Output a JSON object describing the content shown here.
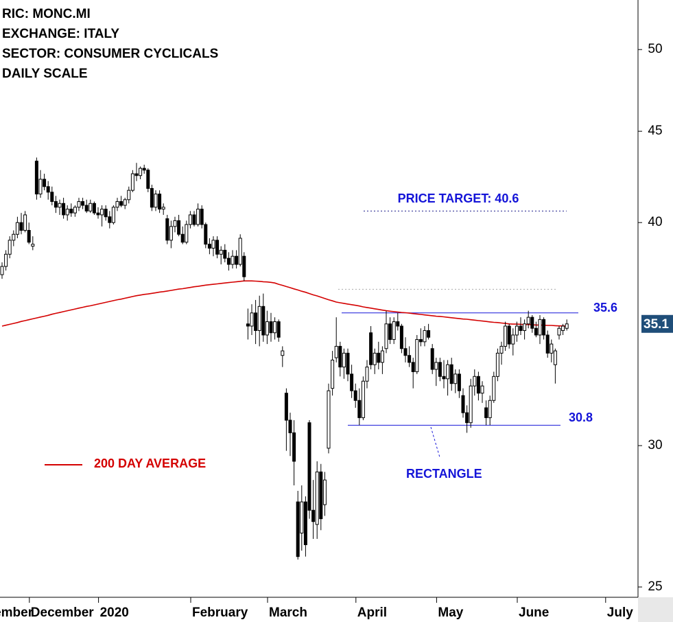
{
  "chart_data": {
    "type": "candlestick",
    "title_lines": [
      "RIC: MONC.MI",
      "EXCHANGE: ITALY",
      "SECTOR: CONSUMER CYCLICALS",
      "DAILY SCALE"
    ],
    "yscale": "log",
    "ylim": [
      24.67,
      53.3
    ],
    "yticks": [
      25,
      30,
      40,
      45,
      50
    ],
    "xticks": [
      {
        "value": -8,
        "label": "November"
      },
      {
        "value": 8,
        "label": "December"
      },
      {
        "value": 26,
        "label": "2020"
      },
      {
        "value": 50,
        "label": "February"
      },
      {
        "value": 70,
        "label": "March"
      },
      {
        "value": 93,
        "label": "April"
      },
      {
        "value": 114,
        "label": "May"
      },
      {
        "value": 135,
        "label": "June"
      },
      {
        "value": 158,
        "label": "July"
      }
    ],
    "ohlc": [
      [
        37.4,
        38.0,
        37.2,
        37.8
      ],
      [
        37.8,
        38.6,
        37.6,
        38.4
      ],
      [
        38.4,
        39.3,
        38.2,
        39.1
      ],
      [
        39.1,
        39.6,
        38.8,
        39.4
      ],
      [
        39.4,
        40.3,
        39.2,
        40.0
      ],
      [
        40.0,
        40.5,
        39.4,
        39.6
      ],
      [
        39.6,
        40.6,
        39.5,
        40.4
      ],
      [
        39.6,
        40.0,
        38.9,
        39.0
      ],
      [
        38.8,
        39.3,
        38.6,
        38.9
      ],
      [
        43.3,
        43.5,
        41.2,
        41.5
      ],
      [
        41.5,
        42.8,
        41.3,
        42.3
      ],
      [
        42.3,
        42.6,
        41.7,
        41.9
      ],
      [
        41.9,
        42.2,
        41.2,
        41.6
      ],
      [
        41.6,
        41.9,
        40.9,
        41.1
      ],
      [
        41.1,
        41.4,
        40.5,
        40.8
      ],
      [
        40.8,
        41.2,
        40.4,
        41.0
      ],
      [
        41.0,
        41.3,
        40.2,
        40.4
      ],
      [
        40.4,
        40.9,
        40.1,
        40.7
      ],
      [
        40.7,
        41.0,
        40.3,
        40.5
      ],
      [
        40.5,
        40.9,
        40.3,
        40.8
      ],
      [
        40.8,
        41.3,
        40.6,
        41.1
      ],
      [
        41.1,
        41.3,
        40.7,
        40.9
      ],
      [
        40.9,
        41.2,
        40.5,
        40.6
      ],
      [
        40.6,
        41.2,
        40.5,
        41.0
      ],
      [
        41.0,
        41.1,
        40.4,
        40.5
      ],
      [
        40.5,
        40.8,
        40.2,
        40.4
      ],
      [
        40.4,
        40.9,
        39.8,
        40.7
      ],
      [
        40.7,
        40.9,
        40.1,
        40.3
      ],
      [
        40.3,
        40.6,
        39.7,
        40.0
      ],
      [
        40.0,
        40.9,
        39.9,
        40.8
      ],
      [
        40.8,
        41.3,
        40.6,
        41.1
      ],
      [
        41.1,
        41.4,
        40.8,
        40.9
      ],
      [
        40.9,
        41.3,
        40.7,
        41.2
      ],
      [
        41.2,
        41.9,
        41.0,
        41.7
      ],
      [
        41.7,
        42.8,
        41.6,
        42.6
      ],
      [
        42.6,
        43.2,
        42.2,
        42.5
      ],
      [
        42.5,
        43.0,
        42.3,
        42.9
      ],
      [
        42.9,
        43.1,
        42.6,
        42.8
      ],
      [
        42.8,
        42.9,
        41.6,
        41.8
      ],
      [
        41.8,
        42.0,
        40.6,
        40.8
      ],
      [
        40.8,
        41.7,
        40.6,
        41.5
      ],
      [
        41.5,
        41.7,
        40.5,
        40.7
      ],
      [
        40.7,
        41.0,
        40.4,
        40.8
      ],
      [
        40.2,
        40.4,
        38.9,
        39.1
      ],
      [
        39.1,
        40.1,
        38.7,
        39.8
      ],
      [
        39.8,
        40.3,
        39.5,
        40.1
      ],
      [
        40.1,
        40.4,
        39.3,
        39.4
      ],
      [
        39.4,
        39.8,
        38.9,
        39.0
      ],
      [
        39.0,
        40.1,
        38.9,
        39.9
      ],
      [
        39.9,
        40.6,
        39.7,
        40.4
      ],
      [
        40.4,
        40.6,
        39.8,
        39.9
      ],
      [
        39.9,
        41.0,
        39.8,
        40.7
      ],
      [
        40.7,
        40.9,
        39.7,
        39.9
      ],
      [
        39.9,
        40.0,
        38.7,
        38.9
      ],
      [
        38.9,
        39.2,
        38.4,
        38.7
      ],
      [
        38.7,
        39.3,
        38.3,
        39.1
      ],
      [
        39.1,
        39.3,
        38.2,
        38.4
      ],
      [
        38.4,
        38.8,
        37.9,
        38.6
      ],
      [
        38.6,
        38.9,
        38.0,
        38.2
      ],
      [
        38.2,
        38.5,
        37.6,
        37.9
      ],
      [
        37.9,
        38.6,
        37.7,
        38.3
      ],
      [
        38.3,
        38.6,
        37.7,
        37.9
      ],
      [
        37.9,
        39.4,
        37.8,
        39.2
      ],
      [
        38.3,
        38.5,
        37.1,
        37.3
      ],
      [
        35.1,
        35.8,
        34.4,
        35.0
      ],
      [
        35.0,
        36.0,
        34.6,
        35.6
      ],
      [
        35.6,
        36.2,
        34.2,
        34.8
      ],
      [
        34.8,
        36.4,
        34.1,
        35.9
      ],
      [
        35.9,
        36.5,
        34.3,
        34.6
      ],
      [
        34.6,
        35.7,
        34.2,
        35.2
      ],
      [
        35.2,
        35.6,
        34.3,
        34.7
      ],
      [
        34.7,
        35.4,
        34.4,
        35.2
      ],
      [
        35.2,
        35.3,
        34.3,
        34.5
      ],
      [
        33.7,
        34.1,
        33.2,
        33.9
      ],
      [
        32.1,
        32.3,
        29.8,
        31.0
      ],
      [
        31.0,
        31.3,
        29.6,
        30.5
      ],
      [
        30.5,
        31.0,
        28.5,
        29.4
      ],
      [
        27.9,
        28.3,
        25.9,
        26.0
      ],
      [
        26.8,
        28.5,
        26.2,
        27.9
      ],
      [
        27.9,
        28.1,
        26.0,
        26.4
      ],
      [
        30.9,
        31.0,
        27.3,
        27.6
      ],
      [
        27.6,
        28.7,
        26.6,
        27.2
      ],
      [
        27.1,
        29.4,
        26.6,
        29.0
      ],
      [
        29.0,
        29.3,
        26.9,
        27.3
      ],
      [
        27.8,
        29.0,
        27.4,
        28.7
      ],
      [
        29.9,
        32.5,
        29.7,
        32.2
      ],
      [
        32.3,
        33.9,
        32.0,
        33.5
      ],
      [
        33.6,
        35.4,
        33.4,
        34.1
      ],
      [
        34.1,
        34.3,
        32.8,
        33.2
      ],
      [
        33.2,
        34.0,
        32.7,
        33.8
      ],
      [
        33.8,
        34.0,
        32.6,
        32.9
      ],
      [
        32.9,
        33.3,
        31.9,
        32.2
      ],
      [
        32.2,
        32.5,
        31.5,
        31.8
      ],
      [
        31.8,
        32.3,
        30.8,
        31.1
      ],
      [
        31.1,
        32.8,
        31.0,
        32.6
      ],
      [
        32.6,
        33.5,
        32.3,
        33.2
      ],
      [
        34.7,
        35.0,
        33.1,
        33.3
      ],
      [
        33.3,
        34.0,
        32.9,
        33.8
      ],
      [
        33.8,
        34.3,
        33.1,
        33.4
      ],
      [
        33.4,
        34.1,
        32.9,
        33.9
      ],
      [
        34.0,
        35.7,
        33.8,
        35.1
      ],
      [
        35.1,
        35.4,
        34.2,
        34.4
      ],
      [
        34.4,
        35.4,
        34.2,
        35.2
      ],
      [
        35.2,
        35.6,
        34.8,
        35.0
      ],
      [
        35.0,
        35.1,
        33.8,
        34.0
      ],
      [
        34.0,
        34.5,
        33.4,
        33.7
      ],
      [
        33.7,
        34.1,
        33.2,
        33.4
      ],
      [
        33.4,
        33.6,
        32.3,
        33.0
      ],
      [
        33.0,
        34.6,
        32.9,
        34.4
      ],
      [
        34.4,
        34.9,
        34.1,
        34.3
      ],
      [
        34.3,
        35.0,
        34.1,
        34.8
      ],
      [
        34.8,
        35.1,
        34.4,
        34.5
      ],
      [
        34.0,
        34.2,
        32.9,
        33.1
      ],
      [
        33.1,
        33.6,
        32.4,
        33.4
      ],
      [
        33.4,
        33.6,
        32.6,
        32.8
      ],
      [
        32.8,
        33.5,
        32.3,
        32.7
      ],
      [
        32.7,
        33.5,
        32.0,
        33.3
      ],
      [
        33.3,
        33.6,
        32.2,
        32.5
      ],
      [
        32.5,
        33.1,
        32.1,
        32.9
      ],
      [
        32.9,
        33.1,
        31.9,
        32.2
      ],
      [
        32.0,
        32.3,
        31.1,
        31.3
      ],
      [
        31.3,
        31.6,
        30.5,
        30.9
      ],
      [
        30.9,
        32.7,
        30.7,
        32.4
      ],
      [
        32.4,
        33.1,
        32.0,
        32.8
      ],
      [
        32.8,
        33.0,
        31.8,
        32.1
      ],
      [
        32.1,
        32.6,
        31.7,
        32.4
      ],
      [
        31.5,
        31.8,
        30.8,
        31.1
      ],
      [
        31.1,
        32.0,
        30.8,
        31.8
      ],
      [
        31.8,
        33.0,
        31.7,
        32.8
      ],
      [
        32.8,
        34.0,
        32.6,
        33.8
      ],
      [
        33.8,
        34.3,
        33.3,
        34.1
      ],
      [
        34.1,
        35.2,
        33.9,
        35.0
      ],
      [
        35.0,
        35.1,
        34.0,
        34.2
      ],
      [
        34.2,
        34.9,
        33.7,
        34.6
      ],
      [
        34.6,
        35.2,
        34.3,
        35.0
      ],
      [
        35.0,
        35.4,
        34.6,
        34.8
      ],
      [
        34.8,
        35.3,
        34.4,
        35.1
      ],
      [
        35.1,
        35.7,
        34.9,
        35.4
      ],
      [
        35.4,
        35.5,
        34.7,
        34.9
      ],
      [
        34.9,
        35.2,
        34.5,
        34.6
      ],
      [
        34.6,
        35.5,
        34.2,
        35.3
      ],
      [
        35.3,
        35.4,
        34.4,
        34.6
      ],
      [
        34.6,
        34.8,
        33.6,
        33.8
      ],
      [
        33.8,
        34.4,
        33.4,
        34.2
      ],
      [
        33.3,
        34.0,
        32.5,
        33.9
      ],
      [
        34.6,
        35.0,
        34.4,
        34.9
      ],
      [
        34.8,
        35.1,
        34.6,
        35.0
      ],
      [
        34.9,
        35.3,
        34.8,
        35.1
      ]
    ],
    "up_color": "#ffffff",
    "down_color": "#000000",
    "series": [
      {
        "name": "200 DAY AVERAGE",
        "color": "#d40000",
        "values": [
          35.0,
          35.04,
          35.08,
          35.12,
          35.16,
          35.21,
          35.25,
          35.29,
          35.33,
          35.37,
          35.41,
          35.45,
          35.49,
          35.54,
          35.58,
          35.62,
          35.66,
          35.7,
          35.74,
          35.78,
          35.82,
          35.86,
          35.9,
          35.93,
          35.97,
          36.01,
          36.05,
          36.09,
          36.13,
          36.17,
          36.21,
          36.24,
          36.28,
          36.32,
          36.36,
          36.4,
          36.43,
          36.46,
          36.48,
          36.51,
          36.54,
          36.57,
          36.59,
          36.62,
          36.65,
          36.68,
          36.71,
          36.73,
          36.76,
          36.79,
          36.82,
          36.84,
          36.87,
          36.9,
          36.92,
          36.94,
          36.96,
          36.98,
          37.0,
          37.02,
          37.04,
          37.06,
          37.08,
          37.1,
          37.1,
          37.1,
          37.09,
          37.08,
          37.06,
          37.05,
          37.03,
          37.0,
          36.94,
          36.89,
          36.83,
          36.78,
          36.72,
          36.67,
          36.61,
          36.56,
          36.5,
          36.44,
          36.39,
          36.33,
          36.27,
          36.21,
          36.16,
          36.1,
          36.07,
          36.04,
          36.01,
          35.98,
          35.95,
          35.92,
          35.88,
          35.85,
          35.82,
          35.79,
          35.76,
          35.73,
          35.7,
          35.68,
          35.66,
          35.64,
          35.62,
          35.61,
          35.59,
          35.57,
          35.55,
          35.53,
          35.51,
          35.49,
          35.47,
          35.45,
          35.44,
          35.42,
          35.4,
          35.38,
          35.36,
          35.34,
          35.32,
          35.31,
          35.29,
          35.27,
          35.25,
          35.23,
          35.21,
          35.19,
          35.17,
          35.16,
          35.14,
          35.12,
          35.1,
          35.09,
          35.09,
          35.08,
          35.07,
          35.07,
          35.06,
          35.05,
          35.05,
          35.04,
          35.03,
          35.03,
          35.02,
          35.01,
          35.01,
          35.0
        ]
      }
    ],
    "levels": [
      {
        "value": 35.6
      },
      {
        "value": 30.8
      },
      {
        "value": 40.6,
        "label": "PRICE TARGET: 40.6"
      },
      {
        "value": 36.7
      }
    ],
    "annotations": [
      "RECTANGLE"
    ]
  }
}
